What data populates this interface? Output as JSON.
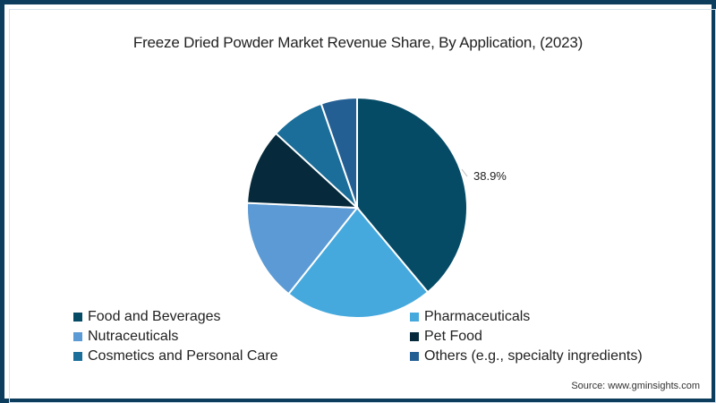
{
  "chart_data": {
    "type": "pie",
    "title": "Freeze Dried Powder Market Revenue Share, By Application, (2023)",
    "categories": [
      "Food and Beverages",
      "Pharmaceuticals",
      "Nutraceuticals",
      "Pet Food",
      "Cosmetics and Personal Care",
      "Others (e.g., specialty ingredients)"
    ],
    "values": [
      38.9,
      21.8,
      15.0,
      11.1,
      7.9,
      5.3
    ],
    "colors": [
      "#064b66",
      "#46a9dd",
      "#5b9ad4",
      "#062a3b",
      "#1a6e99",
      "#245f94"
    ],
    "data_labels": [
      {
        "category": "Food and Beverages",
        "text": "38.9%"
      }
    ],
    "start_angle_deg": 0,
    "direction": "clockwise",
    "legend_position": "bottom",
    "source": "Source: www.gminsights.com"
  },
  "title": "Freeze Dried Powder Market Revenue Share, By Application, (2023)",
  "data_label": "38.9%",
  "legend": [
    {
      "label": "Food and Beverages",
      "color": "#064b66"
    },
    {
      "label": "Pharmaceuticals",
      "color": "#46a9dd"
    },
    {
      "label": "Nutraceuticals",
      "color": "#5b9ad4"
    },
    {
      "label": "Pet Food",
      "color": "#062a3b"
    },
    {
      "label": "Cosmetics and Personal Care",
      "color": "#1a6e99"
    },
    {
      "label": "Others (e.g., specialty ingredients)",
      "color": "#245f94"
    }
  ],
  "source": "Source: www.gminsights.com",
  "frame_color": "#0d3d5c"
}
